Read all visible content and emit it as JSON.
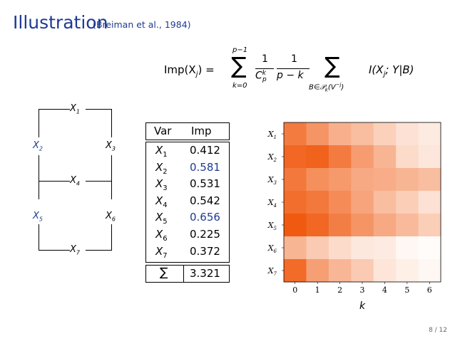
{
  "slide": {
    "title": "Illustration",
    "citation": "(Breiman et al., 1984)",
    "page_number": "8 / 12"
  },
  "formula": {
    "lhs": "Imp(X",
    "lhs_sub": "j",
    "lhs_close": ") =",
    "sum_top": "p−1",
    "sum_bottom": "k=0",
    "sigma": "∑",
    "frac1_num": "1",
    "frac1_den": "C",
    "frac1_den_sup": "k",
    "frac1_den_sub": "p",
    "frac2_num": "1",
    "frac2_den": "p − k",
    "sum2_bottom": "B∈𝒫",
    "sum2_bottom_sub": "k",
    "sum2_bottom_tail": "(V",
    "sum2_bottom_sup": "−j",
    "sum2_bottom_close": ")",
    "rhs": "I(X",
    "rhs_sub": "j",
    "rhs_close": "; Y|B)"
  },
  "graph": {
    "nodes": [
      {
        "label": "X",
        "sub": "1",
        "color": "#000000"
      },
      {
        "label": "X",
        "sub": "2",
        "color": "#1f3a93"
      },
      {
        "label": "X",
        "sub": "3",
        "color": "#000000"
      },
      {
        "label": "X",
        "sub": "4",
        "color": "#000000"
      },
      {
        "label": "X",
        "sub": "5",
        "color": "#1f3a93"
      },
      {
        "label": "X",
        "sub": "6",
        "color": "#000000"
      },
      {
        "label": "X",
        "sub": "7",
        "color": "#000000"
      }
    ]
  },
  "table": {
    "headers": [
      "Var",
      "Imp"
    ],
    "rows": [
      {
        "var": "X",
        "sub": "1",
        "imp": "0.412",
        "highlight": false
      },
      {
        "var": "X",
        "sub": "2",
        "imp": "0.581",
        "highlight": true
      },
      {
        "var": "X",
        "sub": "3",
        "imp": "0.531",
        "highlight": false
      },
      {
        "var": "X",
        "sub": "4",
        "imp": "0.542",
        "highlight": false
      },
      {
        "var": "X",
        "sub": "5",
        "imp": "0.656",
        "highlight": true
      },
      {
        "var": "X",
        "sub": "6",
        "imp": "0.225",
        "highlight": false
      },
      {
        "var": "X",
        "sub": "7",
        "imp": "0.372",
        "highlight": false
      }
    ],
    "sum_symbol": "∑",
    "sum_value": "3.321",
    "highlight_color": "#1f3a93"
  },
  "chart_data": {
    "type": "heatmap",
    "title": "",
    "xlabel": "k",
    "ylabel": "",
    "x_categories": [
      "0",
      "1",
      "2",
      "3",
      "4",
      "5",
      "6"
    ],
    "y_categories": [
      "X1",
      "X2",
      "X3",
      "X4",
      "X5",
      "X6",
      "X7"
    ],
    "colormap": "white-to-orange",
    "values": [
      [
        0.8,
        0.65,
        0.48,
        0.4,
        0.28,
        0.18,
        0.12
      ],
      [
        0.92,
        0.95,
        0.8,
        0.6,
        0.45,
        0.22,
        0.15
      ],
      [
        0.82,
        0.68,
        0.62,
        0.52,
        0.5,
        0.45,
        0.4
      ],
      [
        0.88,
        0.82,
        0.7,
        0.55,
        0.4,
        0.3,
        0.18
      ],
      [
        1.0,
        0.92,
        0.78,
        0.65,
        0.52,
        0.42,
        0.3
      ],
      [
        0.45,
        0.32,
        0.22,
        0.14,
        0.12,
        0.05,
        0.02
      ],
      [
        0.9,
        0.58,
        0.44,
        0.32,
        0.16,
        0.1,
        0.05
      ]
    ],
    "colors": {
      "high": "#f05a10",
      "low": "#ffffff"
    }
  }
}
